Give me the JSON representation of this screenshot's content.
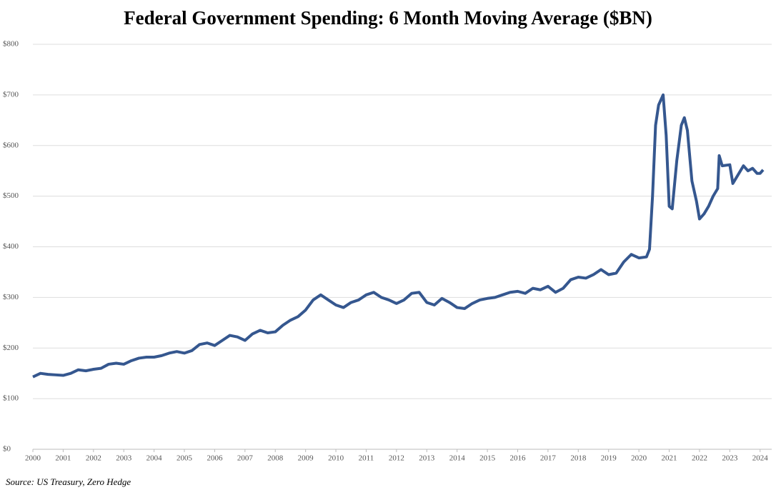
{
  "chart_data": {
    "type": "line",
    "title": "Federal Government Spending: 6 Month Moving Average ($BN)",
    "source": "Source: US Treasury, Zero Hedge",
    "x": [
      2000,
      2000.25,
      2000.5,
      2000.75,
      2001,
      2001.25,
      2001.5,
      2001.75,
      2002,
      2002.25,
      2002.5,
      2002.75,
      2003,
      2003.25,
      2003.5,
      2003.75,
      2004,
      2004.25,
      2004.5,
      2004.75,
      2005,
      2005.25,
      2005.5,
      2005.75,
      2006,
      2006.25,
      2006.5,
      2006.75,
      2007,
      2007.25,
      2007.5,
      2007.75,
      2008,
      2008.25,
      2008.5,
      2008.75,
      2009,
      2009.25,
      2009.5,
      2009.75,
      2010,
      2010.25,
      2010.5,
      2010.75,
      2011,
      2011.25,
      2011.5,
      2011.75,
      2012,
      2012.25,
      2012.5,
      2012.75,
      2013,
      2013.25,
      2013.5,
      2013.75,
      2014,
      2014.25,
      2014.5,
      2014.75,
      2015,
      2015.25,
      2015.5,
      2015.75,
      2016,
      2016.25,
      2016.5,
      2016.75,
      2017,
      2017.25,
      2017.5,
      2017.75,
      2018,
      2018.25,
      2018.5,
      2018.75,
      2019,
      2019.25,
      2019.5,
      2019.75,
      2020,
      2020.25,
      2020.35,
      2020.45,
      2020.55,
      2020.65,
      2020.8,
      2020.9,
      2021,
      2021.1,
      2021.25,
      2021.4,
      2021.5,
      2021.6,
      2021.75,
      2021.9,
      2022,
      2022.15,
      2022.3,
      2022.45,
      2022.6,
      2022.65,
      2022.75,
      2023,
      2023.1,
      2023.3,
      2023.45,
      2023.6,
      2023.75,
      2023.9,
      2024,
      2024.1
    ],
    "series": [
      {
        "name": "Federal Government Spending",
        "color": "#35578f",
        "values": [
          143,
          150,
          148,
          147,
          146,
          150,
          157,
          155,
          158,
          160,
          168,
          170,
          168,
          175,
          180,
          182,
          182,
          185,
          190,
          193,
          190,
          195,
          207,
          210,
          205,
          215,
          225,
          222,
          215,
          228,
          235,
          230,
          232,
          245,
          255,
          262,
          275,
          295,
          305,
          295,
          285,
          280,
          290,
          295,
          305,
          310,
          300,
          295,
          288,
          295,
          308,
          310,
          290,
          285,
          298,
          290,
          280,
          278,
          288,
          295,
          298,
          300,
          305,
          310,
          312,
          308,
          318,
          315,
          322,
          310,
          318,
          335,
          340,
          338,
          345,
          355,
          345,
          348,
          370,
          385,
          378,
          380,
          395,
          500,
          640,
          680,
          700,
          620,
          480,
          475,
          570,
          640,
          655,
          630,
          530,
          490,
          455,
          465,
          480,
          500,
          515,
          580,
          560,
          562,
          525,
          545,
          560,
          550,
          555,
          545,
          545,
          552
        ]
      }
    ],
    "xlim": [
      2000,
      2024.1
    ],
    "xticks": [
      2000,
      2001,
      2002,
      2003,
      2004,
      2005,
      2006,
      2007,
      2008,
      2009,
      2010,
      2011,
      2012,
      2013,
      2014,
      2015,
      2016,
      2017,
      2018,
      2019,
      2020,
      2021,
      2022,
      2023,
      2024
    ],
    "ylim": [
      0,
      800
    ],
    "yticks": [
      {
        "value": 0,
        "label": "$0"
      },
      {
        "value": 100,
        "label": "$100"
      },
      {
        "value": 200,
        "label": "$200"
      },
      {
        "value": 300,
        "label": "$300"
      },
      {
        "value": 400,
        "label": "$400"
      },
      {
        "value": 500,
        "label": "$500"
      },
      {
        "value": 600,
        "label": "$600"
      },
      {
        "value": 700,
        "label": "$700"
      },
      {
        "value": 800,
        "label": "$800"
      }
    ],
    "grid": true
  }
}
